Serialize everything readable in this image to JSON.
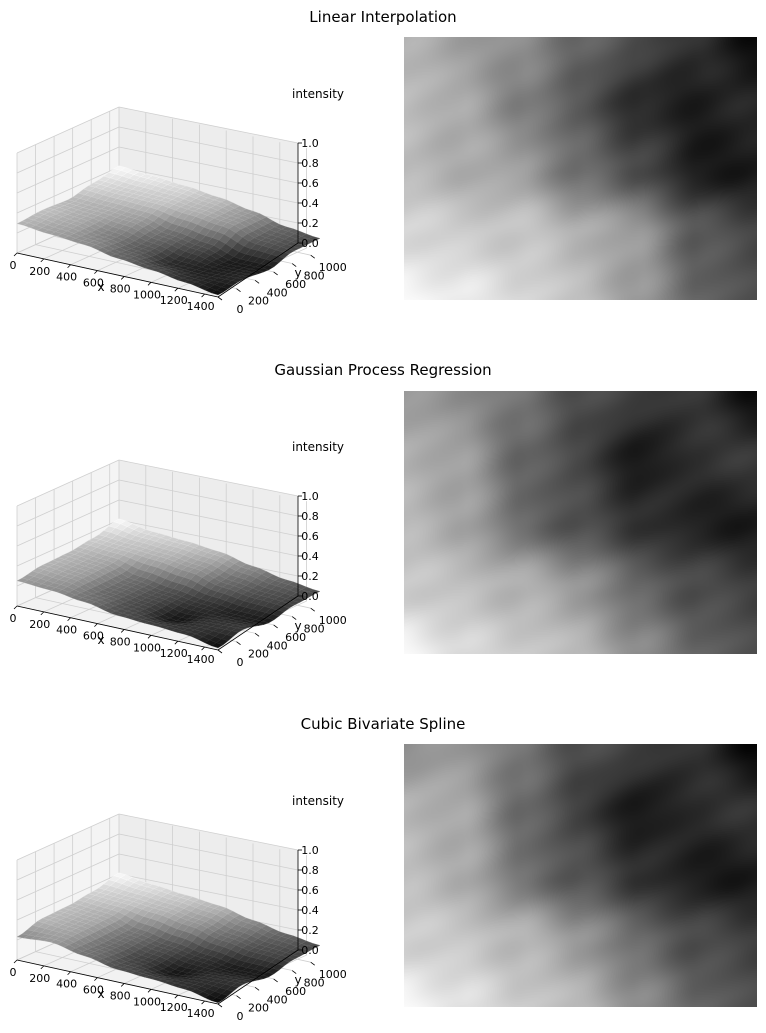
{
  "chart_data": [
    {
      "type": "surface3d+heatmap",
      "title": "Linear Interpolation",
      "xlabel": "x",
      "ylabel": "y",
      "zlabel": "intensity",
      "xticks": [
        "0",
        "200",
        "400",
        "600",
        "800",
        "1000",
        "1200",
        "1400"
      ],
      "yticks": [
        "0",
        "200",
        "400",
        "600",
        "800",
        "1000"
      ],
      "zticks": [
        "0.0",
        "0.2",
        "0.4",
        "0.6",
        "0.8",
        "1.0"
      ],
      "xlim": [
        0,
        1500
      ],
      "ylim": [
        0,
        1100
      ],
      "zlim": [
        0,
        1
      ],
      "colormap": "gray",
      "grid": true,
      "field": {
        "x": [
          0,
          250,
          500,
          750,
          1000,
          1250,
          1500
        ],
        "y": [
          0,
          275,
          550,
          825,
          1100
        ],
        "z": [
          [
            0.7,
            0.62,
            0.55,
            0.4,
            0.3,
            0.18,
            0.05
          ],
          [
            0.75,
            0.66,
            0.5,
            0.35,
            0.15,
            0.12,
            0.15
          ],
          [
            0.72,
            0.68,
            0.62,
            0.42,
            0.3,
            0.1,
            0.1
          ],
          [
            0.85,
            0.8,
            0.78,
            0.7,
            0.6,
            0.35,
            0.28
          ],
          [
            0.98,
            0.92,
            0.85,
            0.75,
            0.6,
            0.4,
            0.3
          ]
        ]
      }
    },
    {
      "type": "surface3d+heatmap",
      "title": "Gaussian Process Regression",
      "xlabel": "x",
      "ylabel": "y",
      "zlabel": "intensity",
      "xticks": [
        "0",
        "200",
        "400",
        "600",
        "800",
        "1000",
        "1200",
        "1400"
      ],
      "yticks": [
        "0",
        "200",
        "400",
        "600",
        "800",
        "1000"
      ],
      "zticks": [
        "0.0",
        "0.2",
        "0.4",
        "0.6",
        "0.8",
        "1.0"
      ],
      "xlim": [
        0,
        1500
      ],
      "ylim": [
        0,
        1100
      ],
      "zlim": [
        0,
        1
      ],
      "colormap": "gray",
      "grid": true,
      "field": {
        "x": [
          0,
          250,
          500,
          750,
          1000,
          1250,
          1500
        ],
        "y": [
          0,
          275,
          550,
          825,
          1100
        ],
        "z": [
          [
            0.6,
            0.55,
            0.45,
            0.3,
            0.25,
            0.2,
            0.05
          ],
          [
            0.7,
            0.62,
            0.4,
            0.28,
            0.08,
            0.2,
            0.22
          ],
          [
            0.72,
            0.65,
            0.42,
            0.3,
            0.2,
            0.12,
            0.1
          ],
          [
            0.8,
            0.75,
            0.7,
            0.6,
            0.4,
            0.3,
            0.25
          ],
          [
            0.98,
            0.85,
            0.8,
            0.72,
            0.55,
            0.4,
            0.3
          ]
        ]
      }
    },
    {
      "type": "surface3d+heatmap",
      "title": "Cubic Bivariate Spline",
      "xlabel": "x",
      "ylabel": "y",
      "zlabel": "intensity",
      "xticks": [
        "0",
        "200",
        "400",
        "600",
        "800",
        "1000",
        "1200",
        "1400"
      ],
      "yticks": [
        "0",
        "200",
        "400",
        "600",
        "800",
        "1000"
      ],
      "zticks": [
        "0.0",
        "0.2",
        "0.4",
        "0.6",
        "0.8",
        "1.0"
      ],
      "xlim": [
        0,
        1500
      ],
      "ylim": [
        0,
        1100
      ],
      "zlim": [
        0,
        1
      ],
      "colormap": "gray",
      "grid": true,
      "field": {
        "x": [
          0,
          250,
          500,
          750,
          1000,
          1250,
          1500
        ],
        "y": [
          0,
          275,
          550,
          825,
          1100
        ],
        "z": [
          [
            0.55,
            0.6,
            0.45,
            0.3,
            0.25,
            0.18,
            0.03
          ],
          [
            0.72,
            0.65,
            0.42,
            0.25,
            0.08,
            0.18,
            0.2
          ],
          [
            0.74,
            0.68,
            0.45,
            0.32,
            0.2,
            0.1,
            0.1
          ],
          [
            0.82,
            0.78,
            0.72,
            0.6,
            0.42,
            0.3,
            0.25
          ],
          [
            0.98,
            0.88,
            0.8,
            0.72,
            0.55,
            0.4,
            0.3
          ]
        ]
      }
    }
  ]
}
